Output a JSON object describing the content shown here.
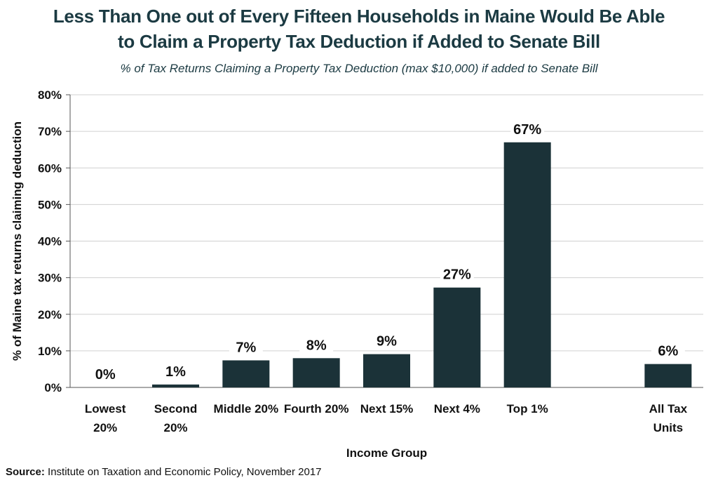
{
  "header": {
    "title_line1": "Less Than One out of Every Fifteen Households in Maine Would Be Able",
    "title_line2": "to Claim a Property Tax Deduction if Added to Senate Bill",
    "subtitle": "% of Tax Returns Claiming a Property Tax Deduction (max $10,000) if added to Senate Bill"
  },
  "source": {
    "label": "Source:",
    "text": " Institute on Taxation and Economic Policy, November 2017"
  },
  "chart_data": {
    "type": "bar",
    "categories": [
      [
        "Lowest",
        "20%"
      ],
      [
        "Second",
        "20%"
      ],
      [
        "Middle 20%"
      ],
      [
        "Fourth 20%"
      ],
      [
        "Next 15%"
      ],
      [
        "Next 4%"
      ],
      [
        "Top 1%"
      ],
      [],
      [
        "All Tax",
        "Units"
      ]
    ],
    "values": [
      0,
      0.8,
      7.4,
      8,
      9.1,
      27.3,
      67,
      null,
      6.4
    ],
    "data_labels": [
      "0%",
      "1%",
      "7%",
      "8%",
      "9%",
      "27%",
      "67%",
      "",
      "6%"
    ],
    "xlabel": "Income Group",
    "ylabel": "% of Maine tax returns claiming deduction",
    "ylim": [
      0,
      80
    ],
    "yticks": [
      0,
      10,
      20,
      30,
      40,
      50,
      60,
      70,
      80
    ],
    "ytick_labels": [
      "0%",
      "10%",
      "20%",
      "30%",
      "40%",
      "50%",
      "60%",
      "70%",
      "80%"
    ],
    "grid": true,
    "bar_color": "#1b3238",
    "grid_color": "#d0d0d0"
  }
}
